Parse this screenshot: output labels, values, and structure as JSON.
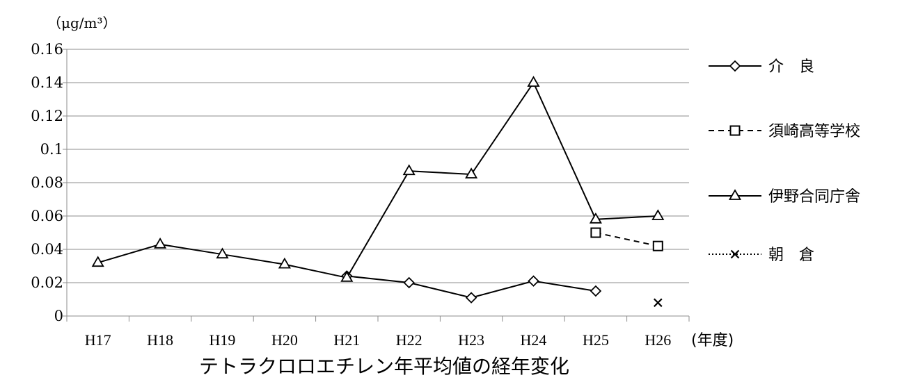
{
  "chart_data": {
    "type": "line",
    "title": "テトラクロロエチレン年平均値の経年変化",
    "ylabel": "（μg/m³）",
    "xlabel": "(年度)",
    "categories": [
      "H17",
      "H18",
      "H19",
      "H20",
      "H21",
      "H22",
      "H23",
      "H24",
      "H25",
      "H26"
    ],
    "ylim": [
      0,
      0.16
    ],
    "yticks": [
      "0",
      "0.02",
      "0.04",
      "0.06",
      "0.08",
      "0.1",
      "0.12",
      "0.14",
      "0.16"
    ],
    "grid": true,
    "legend_position": "right",
    "series": [
      {
        "name": "介　良",
        "marker": "diamond",
        "dash": "solid",
        "color": "#000000",
        "values": [
          null,
          null,
          null,
          null,
          0.024,
          0.02,
          0.011,
          0.021,
          0.015,
          null
        ]
      },
      {
        "name": "須崎高等学校",
        "marker": "square",
        "dash": "dashed",
        "color": "#000000",
        "values": [
          null,
          null,
          null,
          null,
          null,
          null,
          null,
          null,
          0.05,
          0.042
        ]
      },
      {
        "name": "伊野合同庁舎",
        "marker": "triangle",
        "dash": "solid",
        "color": "#000000",
        "values": [
          0.032,
          0.043,
          0.037,
          0.031,
          0.023,
          0.087,
          0.085,
          0.14,
          0.058,
          0.06
        ]
      },
      {
        "name": "朝　倉",
        "marker": "cross",
        "dash": "dotted",
        "color": "#000000",
        "values": [
          null,
          null,
          null,
          null,
          null,
          null,
          null,
          null,
          null,
          0.008
        ]
      }
    ]
  }
}
